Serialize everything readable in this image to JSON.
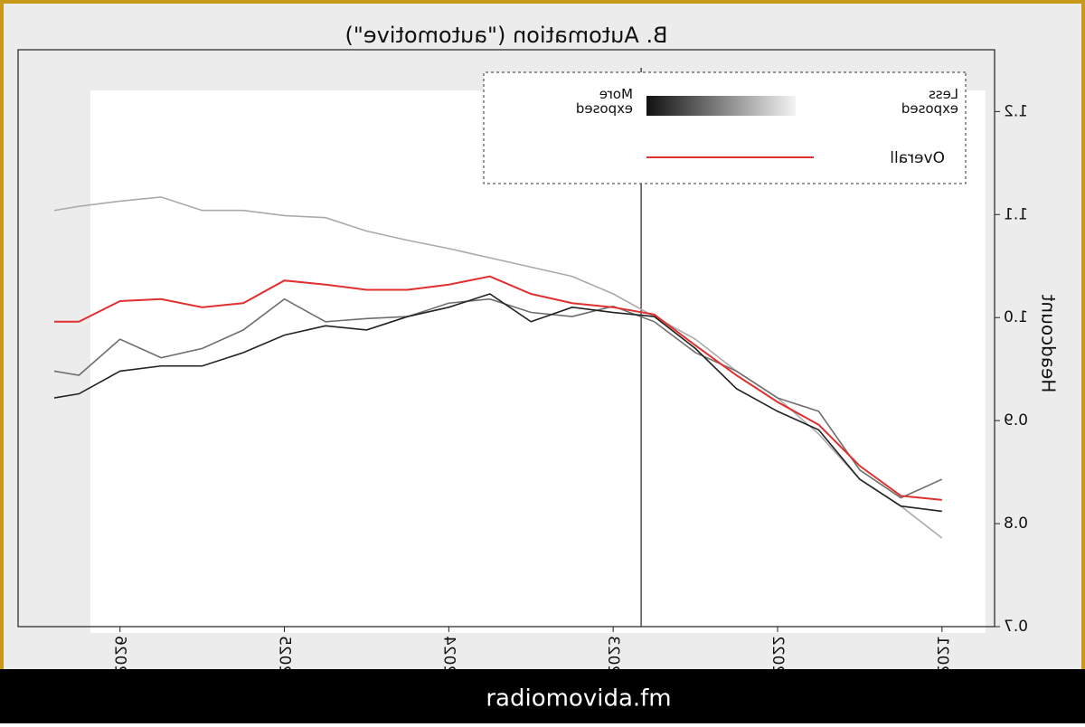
{
  "chart_data": {
    "type": "line",
    "title": "B. Automation (\"automotive\")",
    "y_label": "Headcount",
    "x": [
      2021,
      2021.25,
      2021.5,
      2021.75,
      2022,
      2022.25,
      2022.5,
      2022.75,
      2023,
      2023.25,
      2023.5,
      2023.75,
      2024,
      2024.25,
      2024.5,
      2024.75,
      2025,
      2025.25,
      2025.5,
      2025.75,
      2026,
      2026.25,
      2026.4
    ],
    "xlim": [
      2020.68,
      2026.62
    ],
    "xticks": [
      2021,
      2022,
      2023,
      2024,
      2025,
      2026
    ],
    "ylim": [
      0.7,
      1.26
    ],
    "yticks": [
      0.7,
      0.8,
      0.9,
      {
        "value": 1,
        "label": "1.0"
      },
      1.1,
      1.2
    ],
    "reference_x": 2022.83,
    "mirrored": true,
    "series": [
      {
        "color": "#aaaaaa",
        "values": [
          0.786,
          0.817,
          0.843,
          0.887,
          0.922,
          0.948,
          0.979,
          1.001,
          1.023,
          1.04,
          1.049,
          1.058,
          1.067,
          1.075,
          1.084,
          1.097,
          1.099,
          1.104,
          1.104,
          1.117,
          1.113,
          1.108,
          1.104
        ]
      },
      {
        "color": "#6e6e6e",
        "values": [
          0.843,
          0.825,
          0.852,
          0.909,
          0.922,
          0.948,
          0.966,
          0.996,
          1.011,
          1.001,
          1.005,
          1.018,
          1.014,
          1.001,
          0.999,
          0.996,
          1.018,
          0.988,
          0.97,
          0.961,
          0.979,
          0.944,
          0.948
        ]
      },
      {
        "color": "#222222",
        "values": [
          0.812,
          0.817,
          0.843,
          0.891,
          0.909,
          0.931,
          0.97,
          1.001,
          1.005,
          1.01,
          0.996,
          1.023,
          1.01,
          1.001,
          0.988,
          0.992,
          0.983,
          0.966,
          0.953,
          0.953,
          0.948,
          0.926,
          0.922
        ]
      },
      {
        "name": "Overall",
        "color": "#e03030",
        "values": [
          0.823,
          0.827,
          0.856,
          0.896,
          0.918,
          0.944,
          0.973,
          1.003,
          1.01,
          1.014,
          1.023,
          1.04,
          1.032,
          1.027,
          1.027,
          1.032,
          1.036,
          1.014,
          1.01,
          1.018,
          1.016,
          0.996,
          0.996
        ]
      }
    ],
    "legend_low": "Less exposed",
    "legend_high": "More exposed"
  },
  "footer": "radiomovida.fm"
}
